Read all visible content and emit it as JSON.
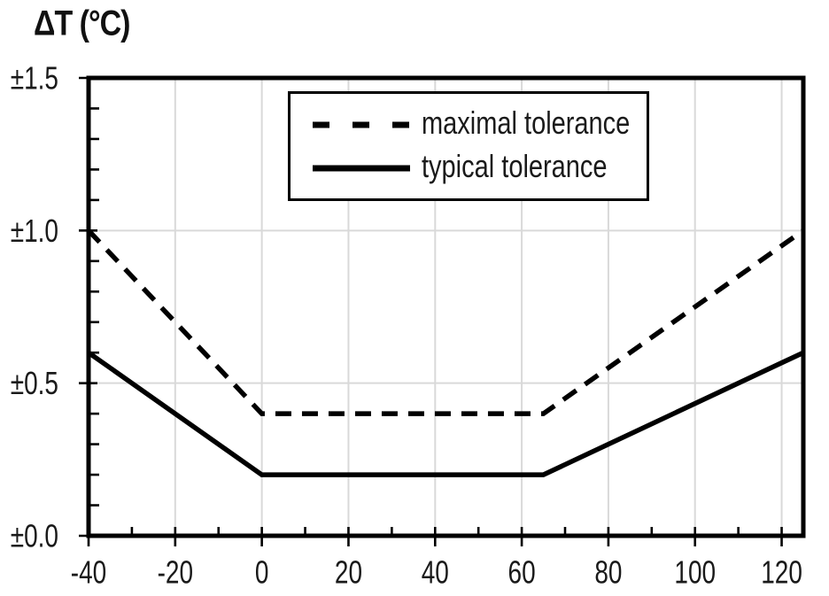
{
  "chart_data": {
    "type": "line",
    "title": "ΔT (°C)",
    "xlabel": "",
    "ylabel": "ΔT (°C)",
    "xlim": [
      -40,
      125
    ],
    "ylim": [
      0,
      1.5
    ],
    "x_major_ticks": [
      -40,
      -20,
      0,
      20,
      40,
      60,
      80,
      100,
      120
    ],
    "x_tick_labels": [
      "-40",
      "-20",
      "0",
      "20",
      "40",
      "60",
      "80",
      "100",
      "120"
    ],
    "x_minor_step": 10,
    "y_major_ticks": [
      0,
      0.5,
      1.0,
      1.5
    ],
    "y_tick_labels": [
      "±0.0",
      "±0.5",
      "±1.0",
      "±1.5"
    ],
    "y_minor_step": 0.1,
    "grid": true,
    "legend_position": "top-center-inside",
    "series": [
      {
        "name": "maximal tolerance",
        "style": "dashed",
        "x": [
          -40,
          0,
          65,
          125
        ],
        "y": [
          1.0,
          0.4,
          0.4,
          1.0
        ]
      },
      {
        "name": "typical tolerance",
        "style": "solid",
        "x": [
          -40,
          0,
          65,
          125
        ],
        "y": [
          0.6,
          0.2,
          0.2,
          0.6
        ]
      }
    ],
    "colors": {
      "line": "#000000",
      "grid": "#d9d9d9",
      "text": "#1a1a1a",
      "background": "#ffffff"
    }
  }
}
